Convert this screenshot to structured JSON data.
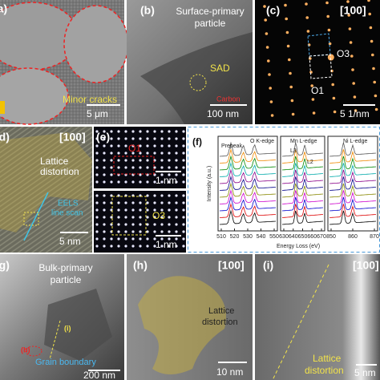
{
  "panels": {
    "a": {
      "label": "(a)",
      "cracks": "Minor cracks",
      "scale": "5 μm"
    },
    "b": {
      "label": "(b)",
      "title": [
        "Surface-primary",
        "particle"
      ],
      "sad": "SAD",
      "carbon": "Carbon",
      "scale": "100 nm"
    },
    "c": {
      "label": "(c)",
      "zone": "[100]",
      "o3": "O3",
      "o1": "O1",
      "scale": "5 1/nm"
    },
    "d": {
      "label": "(d)",
      "zone": "[100]",
      "distortion": [
        "Lattice",
        "distortion"
      ],
      "eels": [
        "EELS",
        "line scan"
      ],
      "scale": "5 nm"
    },
    "e": {
      "label": "(e)",
      "o1": "O1",
      "scale_top": "1 nm",
      "o3": "O3",
      "scale_bottom": "1 nm"
    },
    "f": {
      "label": "(f)",
      "prepeak": "Prepeak",
      "edges": [
        "O K-edge",
        "Mn L-edge",
        "Ni L-edge"
      ],
      "l3": "L3",
      "l2": "L2",
      "ylabel": "Intensity (a.u.)",
      "xlabel": "Energy Loss (eV)",
      "ticks": [
        [
          "510",
          "520",
          "530",
          "540",
          "550"
        ],
        [
          "630",
          "640",
          "650",
          "660",
          "670"
        ],
        [
          "850",
          "860",
          "870"
        ]
      ]
    },
    "g": {
      "label": "(g)",
      "title": [
        "Bulk-primary",
        "particle"
      ],
      "h_marker": "(h)",
      "i_marker": "(i)",
      "boundary": "Grain boundary",
      "scale": "200 nm"
    },
    "h": {
      "label": "(h)",
      "zone": "[100]",
      "distortion": [
        "Lattice",
        "distortion"
      ],
      "scale": "10 nm"
    },
    "i": {
      "label": "(i)",
      "zone": "[100]",
      "distortion": [
        "Lattice",
        "distortion"
      ],
      "scale": "5 nm"
    }
  }
}
